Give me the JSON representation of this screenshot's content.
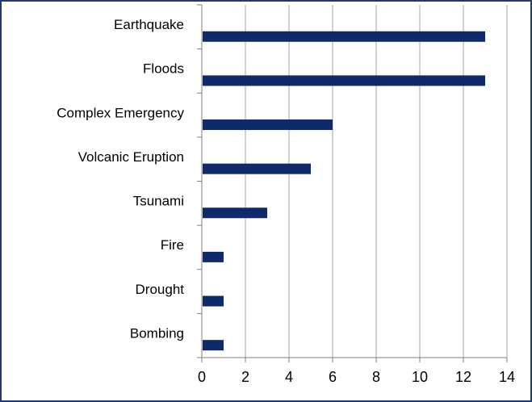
{
  "chart_data": {
    "type": "bar",
    "orientation": "horizontal",
    "title": "",
    "xlabel": "",
    "ylabel": "",
    "categories": [
      "Earthquake",
      "Floods",
      "Complex Emergency",
      "Volcanic Eruption",
      "Tsunami",
      "Fire",
      "Drought",
      "Bombing"
    ],
    "values": [
      13,
      13,
      6,
      5,
      3,
      1,
      1,
      1
    ],
    "xlim": [
      0,
      14
    ],
    "xticks": [
      "0",
      "2",
      "4",
      "6",
      "8",
      "10",
      "12",
      "14"
    ],
    "grid": "vertical",
    "legend": "none",
    "bar_color": "#0f2a6b",
    "grid_color": "#a6a6a6",
    "axis_color": "#7f7f7f",
    "border_color": "#1f3a78"
  }
}
